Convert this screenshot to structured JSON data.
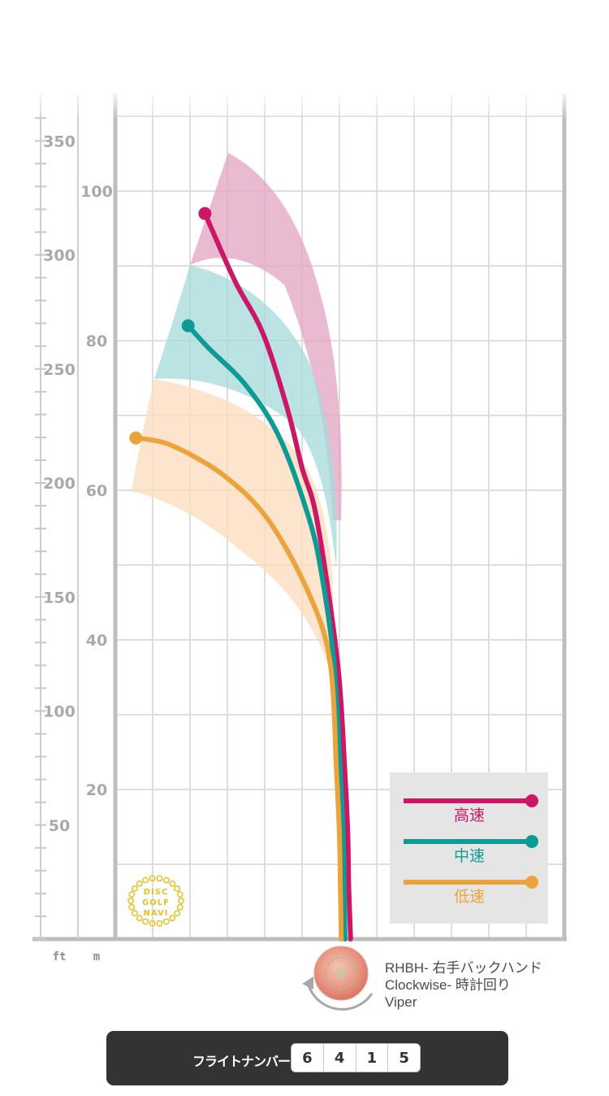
{
  "chart_data": {
    "type": "line",
    "title": "",
    "x_axis": {
      "label": "",
      "range_m": [
        -5,
        12
      ]
    },
    "y_axis_m": {
      "unit_label": "m",
      "range": [
        0,
        112
      ],
      "ticks": [
        20,
        40,
        60,
        80,
        100
      ]
    },
    "y_axis_ft": {
      "unit_label": "ft",
      "range": [
        0,
        368
      ],
      "ticks": [
        50,
        100,
        150,
        200,
        250,
        300,
        350
      ]
    },
    "series": [
      {
        "name": "高速",
        "color": "#cc1766",
        "points": [
          [
            0.6,
            0
          ],
          [
            0.5,
            7
          ],
          [
            0.45,
            14
          ],
          [
            0.3,
            22
          ],
          [
            -0.1,
            37
          ],
          [
            -1.2,
            56
          ],
          [
            -2.0,
            63
          ],
          [
            -2.8,
            71
          ],
          [
            -4.1,
            81
          ],
          [
            -5.6,
            88
          ],
          [
            -7.2,
            97
          ]
        ]
      },
      {
        "name": "中速",
        "color": "#0f9b95",
        "points": [
          [
            0.3,
            0
          ],
          [
            0.25,
            7
          ],
          [
            0.2,
            14
          ],
          [
            0.05,
            22
          ],
          [
            -0.3,
            37
          ],
          [
            -0.9,
            48
          ],
          [
            -1.6,
            56
          ],
          [
            -3.2,
            67
          ],
          [
            -5.0,
            74
          ],
          [
            -7.0,
            79
          ],
          [
            -8.1,
            82
          ]
        ]
      },
      {
        "name": "低速",
        "color": "#eda33c",
        "points": [
          [
            0.1,
            0
          ],
          [
            0.05,
            7
          ],
          [
            0,
            14
          ],
          [
            -0.15,
            22
          ],
          [
            -0.5,
            37
          ],
          [
            -1.6,
            46
          ],
          [
            -3.8,
            56
          ],
          [
            -6.2,
            62
          ],
          [
            -9.0,
            66
          ],
          [
            -10.9,
            67
          ]
        ]
      }
    ],
    "spread_bands": [
      {
        "name": "高速",
        "color": "#e3a3c2"
      },
      {
        "name": "中速",
        "color": "#a6dad9"
      },
      {
        "name": "低速",
        "color": "#fbdcbb"
      }
    ],
    "legend_position": "bottom-right",
    "grid": true
  },
  "axis_labels": {
    "ft": "ft",
    "m": "m"
  },
  "legend": [
    {
      "label": "高速",
      "color": "#cc1766"
    },
    {
      "label": "中速",
      "color": "#0f9b95"
    },
    {
      "label": "低速",
      "color": "#eda33c"
    }
  ],
  "logo": {
    "lines": [
      "DISC",
      "GOLF",
      "NAVI"
    ],
    "color": "#e6c021"
  },
  "disc": {
    "throw": "RHBH- 右手バックハンド",
    "rotation": "Clockwise- 時計回り",
    "name": "Viper",
    "rotation_icon": "clockwise-arrow-icon"
  },
  "flight_numbers": {
    "label": "フライトナンバー",
    "speed": "6",
    "glide": "4",
    "turn": "1",
    "fade": "5"
  }
}
